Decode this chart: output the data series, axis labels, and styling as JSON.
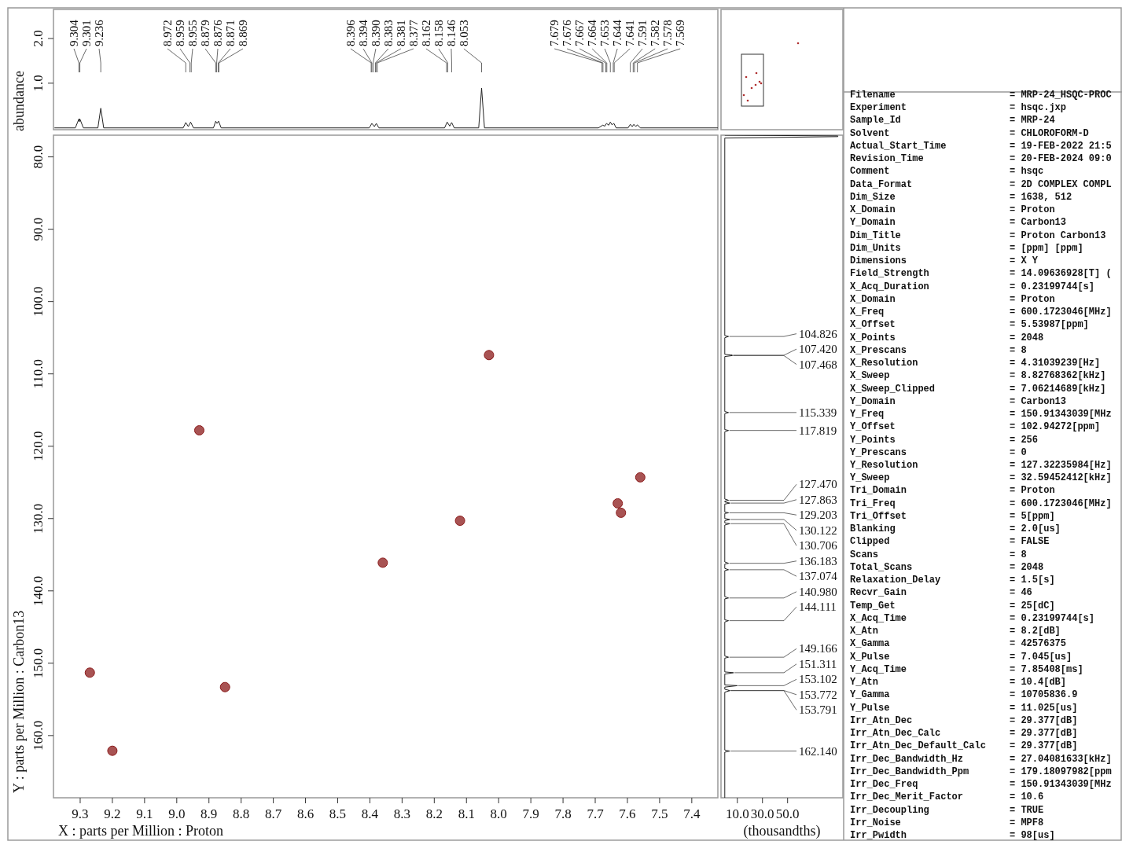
{
  "chart_data": [
    {
      "type": "line",
      "ylabel": "abundance",
      "xlim": [
        9.383,
        7.319
      ],
      "ylim": [
        -0.04,
        2.65
      ],
      "yticks": [
        {
          "value": 1,
          "label": "1.0"
        },
        {
          "value": 2,
          "label": "2.0"
        }
      ],
      "tick_labels": "y",
      "color": "#222222",
      "x": [
        9.38,
        9.315,
        9.304,
        9.3025,
        9.301,
        9.29,
        9.245,
        9.236,
        9.227,
        8.98,
        8.972,
        8.964,
        8.957,
        8.948,
        8.886,
        8.879,
        8.875,
        8.87,
        8.862,
        8.402,
        8.394,
        8.386,
        8.38,
        8.372,
        8.168,
        8.16,
        8.152,
        8.146,
        8.138,
        8.062,
        8.053,
        8.044,
        7.69,
        7.677,
        7.67,
        7.665,
        7.658,
        7.653,
        7.648,
        7.642,
        7.635,
        7.598,
        7.591,
        7.585,
        7.58,
        7.574,
        7.569,
        7.56,
        7.319
      ],
      "values": [
        0,
        0,
        0.2,
        0.14,
        0.2,
        0,
        0,
        0.44,
        0,
        0,
        0.12,
        0.03,
        0.13,
        0,
        0,
        0.15,
        0.1,
        0.15,
        0,
        0,
        0.1,
        0.03,
        0.1,
        0,
        0,
        0.13,
        0.04,
        0.12,
        0,
        0,
        0.89,
        0,
        0,
        0.06,
        0.04,
        0.1,
        0.06,
        0.13,
        0.07,
        0.1,
        0,
        0,
        0.08,
        0.03,
        0.08,
        0.03,
        0.07,
        0,
        0
      ],
      "annotations": [
        {
          "text": "9.304",
          "x": 9.304
        },
        {
          "text": "9.301",
          "x": 9.301
        },
        {
          "text": "9.236",
          "x": 9.236
        },
        {
          "text": "8.972",
          "x": 8.972
        },
        {
          "text": "8.959",
          "x": 8.959
        },
        {
          "text": "8.955",
          "x": 8.955
        },
        {
          "text": "8.879",
          "x": 8.879
        },
        {
          "text": "8.876",
          "x": 8.876
        },
        {
          "text": "8.871",
          "x": 8.871
        },
        {
          "text": "8.869",
          "x": 8.869
        },
        {
          "text": "8.396",
          "x": 8.396
        },
        {
          "text": "8.394",
          "x": 8.394
        },
        {
          "text": "8.390",
          "x": 8.39
        },
        {
          "text": "8.383",
          "x": 8.383
        },
        {
          "text": "8.381",
          "x": 8.381
        },
        {
          "text": "8.377",
          "x": 8.377
        },
        {
          "text": "8.162",
          "x": 8.162
        },
        {
          "text": "8.158",
          "x": 8.158
        },
        {
          "text": "8.146",
          "x": 8.146
        },
        {
          "text": "8.053",
          "x": 8.053
        },
        {
          "text": "7.679",
          "x": 7.679
        },
        {
          "text": "7.676",
          "x": 7.676
        },
        {
          "text": "7.667",
          "x": 7.667
        },
        {
          "text": "7.664",
          "x": 7.664
        },
        {
          "text": "7.653",
          "x": 7.653
        },
        {
          "text": "7.644",
          "x": 7.644
        },
        {
          "text": "7.641",
          "x": 7.641
        },
        {
          "text": "7.591",
          "x": 7.591
        },
        {
          "text": "7.582",
          "x": 7.582
        },
        {
          "text": "7.578",
          "x": 7.578
        },
        {
          "text": "7.569",
          "x": 7.569
        }
      ]
    },
    {
      "type": "scatter",
      "xlabel": "X : parts per Million : Proton",
      "ylabel": "Y : parts per Million : Carbon13",
      "xlim": [
        9.383,
        7.319
      ],
      "ylim": [
        168.6,
        77.0
      ],
      "xticks": [
        9.3,
        9.2,
        9.1,
        {
          "value": 9,
          "label": "9.0"
        },
        8.9,
        8.8,
        8.7,
        8.6,
        8.5,
        8.4,
        8.3,
        8.2,
        8.1,
        {
          "value": 8,
          "label": "8.0"
        },
        7.9,
        7.8,
        7.7,
        7.6,
        7.5,
        7.4
      ],
      "yticks": [
        {
          "value": 80,
          "label": "80.0"
        },
        {
          "value": 90,
          "label": "90.0"
        },
        {
          "value": 100,
          "label": "100.0"
        },
        {
          "value": 110,
          "label": "110.0"
        },
        {
          "value": 120,
          "label": "120.0"
        },
        {
          "value": 130,
          "label": "130.0"
        },
        {
          "value": 140,
          "label": "140.0"
        },
        {
          "value": 150,
          "label": "150.0"
        },
        {
          "value": 160,
          "label": "160.0"
        }
      ],
      "color": "#8b1a1a",
      "marker": "circle",
      "x": [
        9.27,
        9.2,
        8.93,
        8.85,
        8.36,
        8.12,
        8.03,
        7.63,
        7.62,
        7.56
      ],
      "values": [
        151.3,
        162.1,
        117.8,
        153.3,
        136.1,
        130.3,
        107.4,
        127.9,
        129.2,
        124.3
      ]
    },
    {
      "type": "line",
      "xlabel": "(thousandths)",
      "xlim": [
        -3,
        94
      ],
      "ylim": [
        168.6,
        77.0
      ],
      "xticks": [
        {
          "value": 10,
          "label": "10.0"
        },
        {
          "value": 30,
          "label": "30.0"
        },
        {
          "value": 50,
          "label": "50.0"
        }
      ],
      "tick_labels": "x",
      "color": "#222222",
      "x": [
        0,
        90,
        90,
        0,
        0,
        3,
        0,
        0,
        6,
        5,
        6,
        0,
        0,
        3,
        0,
        0,
        3,
        0,
        0,
        3,
        0,
        0,
        4,
        0,
        0,
        3,
        0,
        0,
        4,
        0,
        0,
        4,
        0,
        0,
        3,
        0,
        0,
        3,
        0,
        0,
        3,
        0,
        0,
        3,
        0,
        0,
        3,
        0,
        0,
        7,
        0,
        0,
        10,
        0,
        0,
        4,
        3,
        4,
        0,
        0,
        4,
        0,
        0
      ],
      "values": [
        77.0,
        77.1,
        77.2,
        77.4,
        104.7,
        104.826,
        105.0,
        107.3,
        107.42,
        107.44,
        107.468,
        107.6,
        115.2,
        115.339,
        115.5,
        117.7,
        117.819,
        118.0,
        127.3,
        127.47,
        127.6,
        127.7,
        127.863,
        128.0,
        129.1,
        129.203,
        129.3,
        130.0,
        130.122,
        130.3,
        130.6,
        130.706,
        130.9,
        136.0,
        136.183,
        136.3,
        136.9,
        137.074,
        137.2,
        140.8,
        140.98,
        141.1,
        144.0,
        144.111,
        144.3,
        149.0,
        149.166,
        149.3,
        151.2,
        151.311,
        151.5,
        153.0,
        153.102,
        153.3,
        153.6,
        153.772,
        153.78,
        153.791,
        154.0,
        162.0,
        162.14,
        162.3,
        168.6
      ],
      "annotations": [
        {
          "text": "104.826",
          "x": 3,
          "y": 104.826
        },
        {
          "text": "107.420",
          "x": 6,
          "y": 107.42
        },
        {
          "text": "107.468",
          "x": 6,
          "y": 107.468
        },
        {
          "text": "115.339",
          "x": 3,
          "y": 115.339
        },
        {
          "text": "117.819",
          "x": 3,
          "y": 117.819
        },
        {
          "text": "127.470",
          "x": 3,
          "y": 127.47
        },
        {
          "text": "127.863",
          "x": 4,
          "y": 127.863
        },
        {
          "text": "129.203",
          "x": 3,
          "y": 129.203
        },
        {
          "text": "130.122",
          "x": 4,
          "y": 130.122
        },
        {
          "text": "130.706",
          "x": 4,
          "y": 130.706
        },
        {
          "text": "136.183",
          "x": 3,
          "y": 136.183
        },
        {
          "text": "137.074",
          "x": 3,
          "y": 137.074
        },
        {
          "text": "140.980",
          "x": 3,
          "y": 140.98
        },
        {
          "text": "144.111",
          "x": 3,
          "y": 144.111
        },
        {
          "text": "149.166",
          "x": 3,
          "y": 149.166
        },
        {
          "text": "151.311",
          "x": 7,
          "y": 151.311
        },
        {
          "text": "153.102",
          "x": 10,
          "y": 153.102
        },
        {
          "text": "153.772",
          "x": 4,
          "y": 153.772
        },
        {
          "text": "153.791",
          "x": 4,
          "y": 153.791
        },
        {
          "text": "162.140",
          "x": 4,
          "y": 162.14
        }
      ]
    },
    {
      "type": "other",
      "annotations": [
        "Filename",
        "= MRP-24_HSQC-PROC",
        "Experiment",
        "= hsqc.jxp",
        "Sample_Id",
        "= MRP-24",
        "Solvent",
        "= CHLOROFORM-D",
        "Actual_Start_Time",
        "= 19-FEB-2022 21:5",
        "Revision_Time",
        "= 20-FEB-2024 09:0",
        "Comment",
        "= hsqc",
        "Data_Format",
        "= 2D COMPLEX COMPL",
        "Dim_Size",
        "= 1638, 512",
        "X_Domain",
        "= Proton",
        "Y_Domain",
        "= Carbon13",
        "Dim_Title",
        "= Proton Carbon13",
        "Dim_Units",
        "= [ppm] [ppm]",
        "Dimensions",
        "= X Y",
        "Field_Strength",
        "= 14.09636928[T] (",
        "X_Acq_Duration",
        "= 0.23199744[s]",
        "X_Domain",
        "= Proton",
        "X_Freq",
        "= 600.1723046[MHz]",
        "X_Offset",
        "= 5.53987[ppm]",
        "X_Points",
        "= 2048",
        "X_Prescans",
        "= 8",
        "X_Resolution",
        "= 4.31039239[Hz]",
        "X_Sweep",
        "= 8.82768362[kHz]",
        "X_Sweep_Clipped",
        "= 7.06214689[kHz]",
        "Y_Domain",
        "= Carbon13",
        "Y_Freq",
        "= 150.91343039[MHz",
        "Y_Offset",
        "= 102.94272[ppm]",
        "Y_Points",
        "= 256",
        "Y_Prescans",
        "= 0",
        "Y_Resolution",
        "= 127.32235984[Hz]",
        "Y_Sweep",
        "= 32.59452412[kHz]",
        "Tri_Domain",
        "= Proton",
        "Tri_Freq",
        "= 600.1723046[MHz]",
        "Tri_Offset",
        "= 5[ppm]",
        "Blanking",
        "= 2.0[us]",
        "Clipped",
        "= FALSE",
        "Scans",
        "= 8",
        "Total_Scans",
        "= 2048",
        "Relaxation_Delay",
        "= 1.5[s]",
        "Recvr_Gain",
        "= 46",
        "Temp_Get",
        "= 25[dC]",
        "X_Acq_Time",
        "= 0.23199744[s]",
        "X_Atn",
        "= 8.2[dB]",
        "X_Gamma",
        "= 42576375",
        "X_Pulse",
        "= 7.045[us]",
        "Y_Acq_Time",
        "= 7.85408[ms]",
        "Y_Atn",
        "= 10.4[dB]",
        "Y_Gamma",
        "= 10705836.9",
        "Y_Pulse",
        "= 11.025[us]",
        "Irr_Atn_Dec",
        "= 29.377[dB]",
        "Irr_Atn_Dec_Calc",
        "= 29.377[dB]",
        "Irr_Atn_Dec_Default_Calc",
        "= 29.377[dB]",
        "Irr_Dec_Bandwidth_Hz",
        "= 27.04081633[kHz]",
        "Irr_Dec_Bandwidth_Ppm",
        "= 179.18097982[ppm",
        "Irr_Dec_Freq",
        "= 150.91343039[MHz",
        "Irr_Dec_Merit_Factor",
        "= 10.6",
        "Irr_Decoupling",
        "= TRUE",
        "Irr_Noise",
        "= MPF8",
        "Irr_Pwidth",
        "= 98[us]"
      ]
    }
  ]
}
